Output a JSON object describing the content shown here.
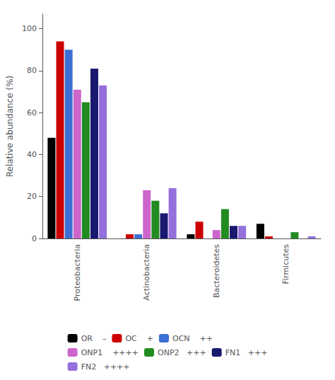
{
  "chart_data": {
    "type": "bar",
    "categories": [
      "Proteobacteria",
      "Actinobacteria",
      "Bacteroidetes",
      "Firmicutes"
    ],
    "series": [
      {
        "name": "OR    –",
        "color": "#000000",
        "values": [
          48,
          0,
          2,
          7
        ]
      },
      {
        "name": "OC    +",
        "color": "#cc0000",
        "values": [
          94,
          2,
          8,
          1
        ]
      },
      {
        "name": "OCN    ++",
        "color": "#3b6fd4",
        "values": [
          90,
          2,
          0,
          0
        ]
      },
      {
        "name": "ONP1    ++++",
        "color": "#cc66cc",
        "values": [
          71,
          23,
          4,
          0
        ]
      },
      {
        "name": "ONP2   +++",
        "color": "#228B22",
        "values": [
          65,
          18,
          14,
          3
        ]
      },
      {
        "name": "FN1   +++",
        "color": "#191970",
        "values": [
          81,
          12,
          6,
          0
        ]
      },
      {
        "name": "FN2   ++++",
        "color": "#9370DB",
        "values": [
          73,
          24,
          6,
          1
        ]
      }
    ],
    "ylabel": "Relative abundance (%)",
    "ylim": [
      0,
      107
    ],
    "yticks": [
      0,
      20,
      40,
      60,
      80,
      100
    ],
    "grid": false,
    "legend": "bottom"
  }
}
